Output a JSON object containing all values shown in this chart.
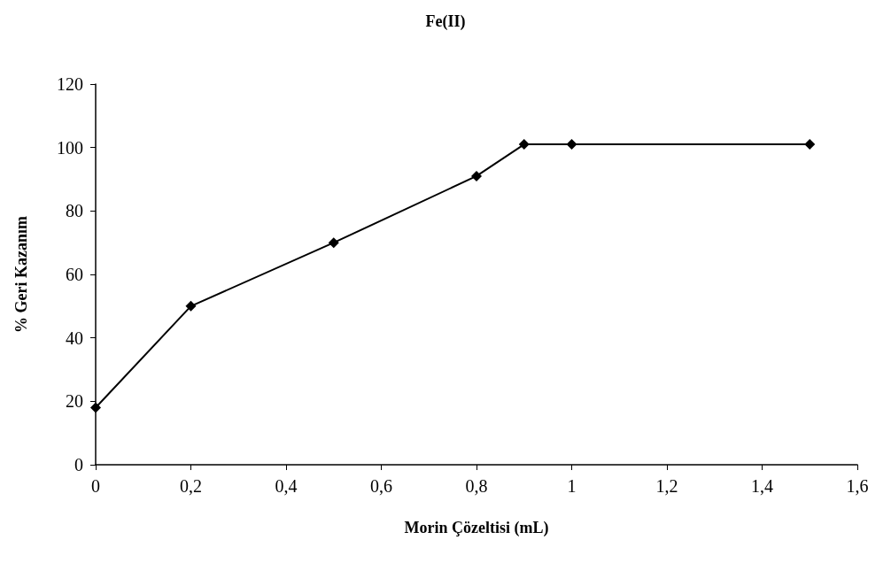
{
  "chart_data": {
    "type": "line",
    "title": "Fe(II)",
    "xlabel": "Morin Çözeltisi (mL)",
    "ylabel": "% Geri Kazanım",
    "x": [
      0,
      0.2,
      0.5,
      0.8,
      0.9,
      1,
      1.5
    ],
    "series": [
      {
        "color": "#000000",
        "values": [
          18,
          50,
          70,
          91,
          101,
          101,
          101
        ]
      }
    ],
    "xlim": [
      0,
      1.6
    ],
    "xticks": [
      0,
      {
        "value": 0.2,
        "label": "0,2"
      },
      {
        "value": 0.4,
        "label": "0,4"
      },
      {
        "value": 0.6,
        "label": "0,6"
      },
      {
        "value": 0.8,
        "label": "0,8"
      },
      1,
      {
        "value": 1.2,
        "label": "1,2"
      },
      {
        "value": 1.4,
        "label": "1,4"
      },
      {
        "value": 1.6,
        "label": "1,6"
      }
    ],
    "ylim": [
      0,
      120
    ],
    "yticks": [
      0,
      20,
      40,
      60,
      80,
      100,
      120
    ],
    "grid": false,
    "marker": "diamond",
    "line_style": "solid"
  }
}
